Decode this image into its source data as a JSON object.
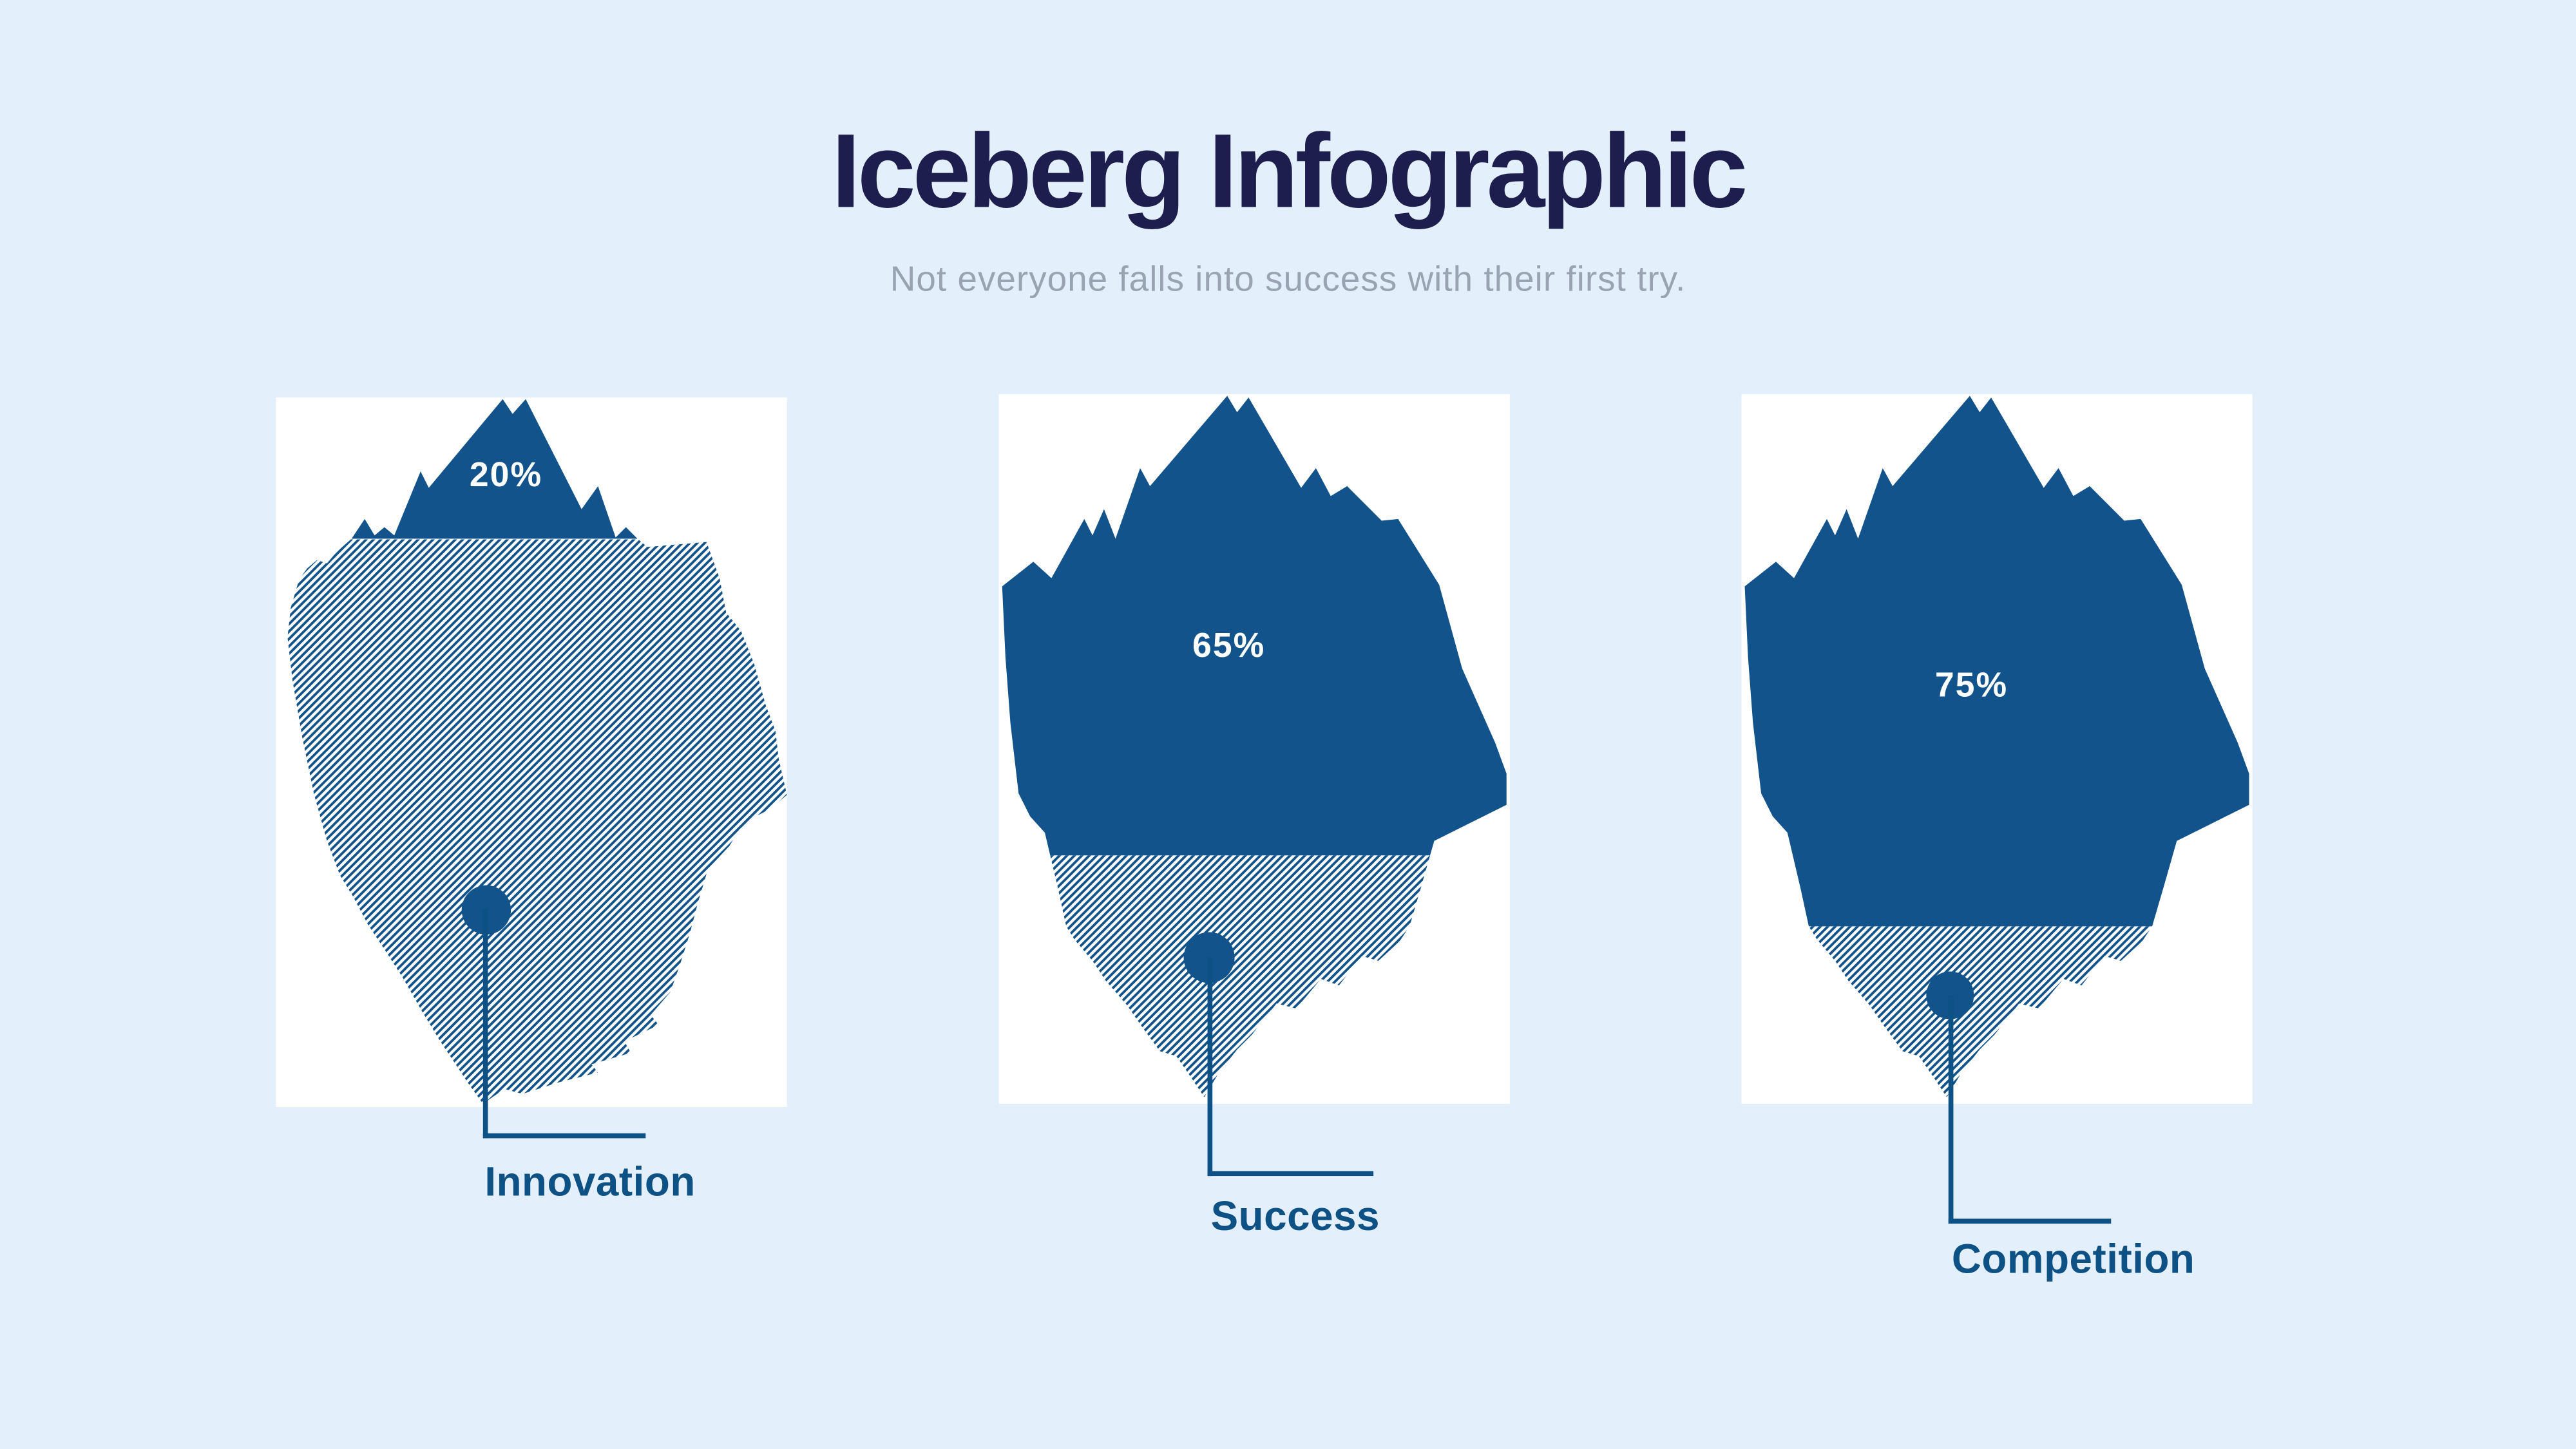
{
  "page": {
    "title": "Iceberg Infographic",
    "subtitle": "Not everyone falls into success with their first try."
  },
  "colors": {
    "iceberg_blue": "#11538a",
    "connector_blue": "#0e5184",
    "title_navy": "#1d1e4d",
    "subtitle_gray": "#99a3b1",
    "background": "#e3f0fb",
    "card_background": "#ffffff",
    "percent_text": "#ffffff"
  },
  "cards": [
    {
      "label": "Innovation",
      "percent_label": "20%",
      "percent_value": 20
    },
    {
      "label": "Success",
      "percent_label": "65%",
      "percent_value": 65
    },
    {
      "label": "Competition",
      "percent_label": "75%",
      "percent_value": 75
    }
  ]
}
